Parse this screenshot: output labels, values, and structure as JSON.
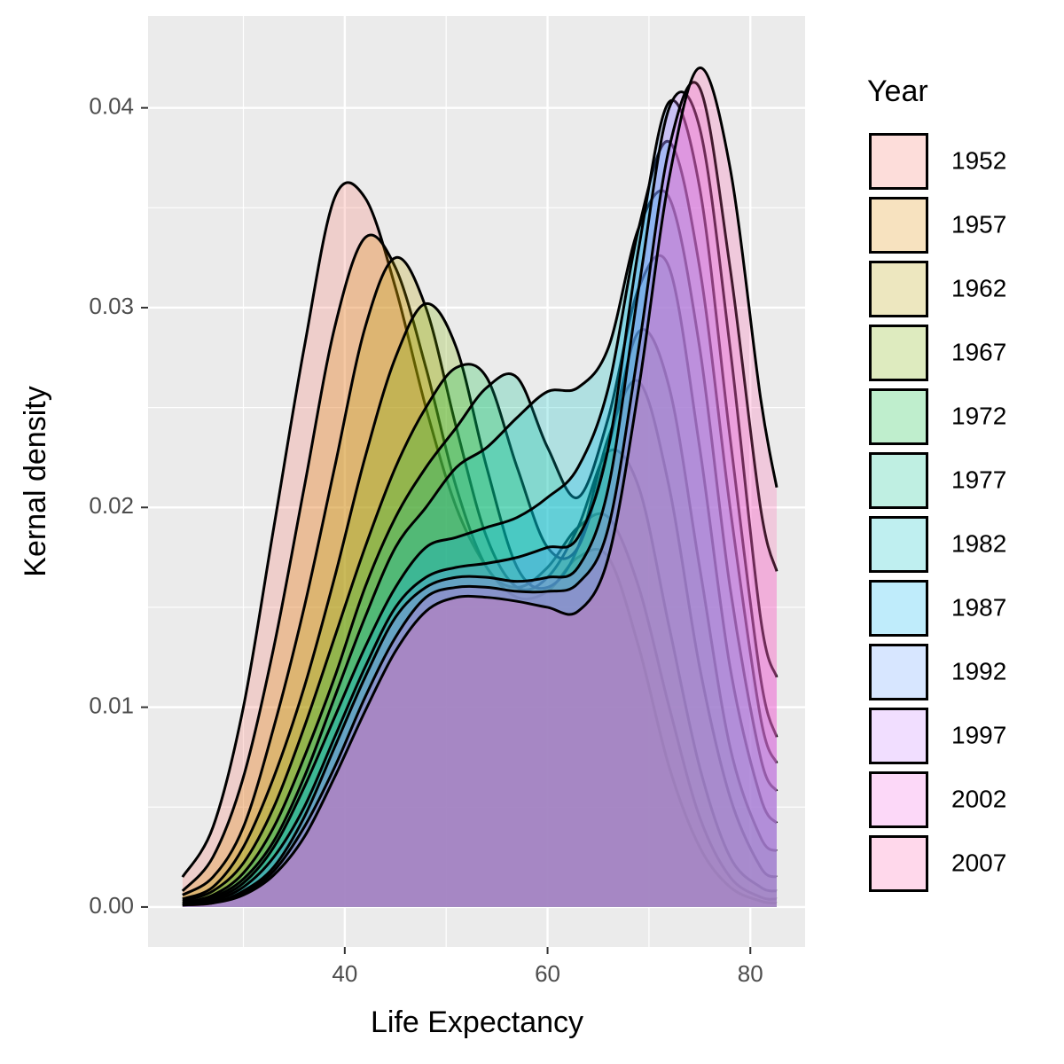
{
  "chart_data": {
    "type": "density",
    "x_label": "Life Expectancy",
    "y_label": "Kernal density",
    "legend_title": "Year",
    "legend": "right",
    "grid": true,
    "minor_grid": true,
    "fill_opacity": 0.25,
    "line_color": "#000000",
    "xlim": [
      20.6,
      85.4
    ],
    "ylim": [
      -0.002,
      0.0446
    ],
    "xticks": [
      40,
      60,
      80
    ],
    "yticks": [
      {
        "value": 0,
        "label": "0.00"
      },
      0.01,
      0.02,
      0.03,
      0.04
    ],
    "x": [
      24,
      27,
      30,
      33,
      36,
      39,
      42,
      45,
      48,
      51,
      54,
      57,
      60,
      63,
      66,
      69,
      72,
      75,
      78,
      81,
      82.6
    ],
    "series": [
      {
        "name": "1952",
        "color": "#F8766D",
        "values": [
          0.0015,
          0.004,
          0.01,
          0.019,
          0.028,
          0.0355,
          0.0355,
          0.031,
          0.025,
          0.02,
          0.017,
          0.0155,
          0.0158,
          0.0175,
          0.0175,
          0.013,
          0.007,
          0.003,
          0.001,
          0.0003,
          0.0002
        ]
      },
      {
        "name": "1957",
        "color": "#DE8C00",
        "values": [
          0.0008,
          0.0025,
          0.0065,
          0.013,
          0.021,
          0.029,
          0.0335,
          0.032,
          0.027,
          0.021,
          0.017,
          0.016,
          0.017,
          0.019,
          0.0195,
          0.016,
          0.01,
          0.0045,
          0.0015,
          0.0005,
          0.0004
        ]
      },
      {
        "name": "1962",
        "color": "#B79F00",
        "values": [
          0.0006,
          0.0015,
          0.004,
          0.009,
          0.015,
          0.022,
          0.029,
          0.0325,
          0.03,
          0.024,
          0.0185,
          0.016,
          0.0165,
          0.019,
          0.0228,
          0.021,
          0.014,
          0.007,
          0.0025,
          0.001,
          0.0008
        ]
      },
      {
        "name": "1967",
        "color": "#7CAE00",
        "values": [
          0.0004,
          0.001,
          0.003,
          0.0065,
          0.011,
          0.0165,
          0.0225,
          0.0275,
          0.0302,
          0.028,
          0.022,
          0.017,
          0.016,
          0.018,
          0.0235,
          0.0263,
          0.021,
          0.012,
          0.0055,
          0.002,
          0.0015
        ]
      },
      {
        "name": "1972",
        "color": "#00BA38",
        "values": [
          0.0003,
          0.0008,
          0.0022,
          0.005,
          0.009,
          0.0135,
          0.018,
          0.022,
          0.025,
          0.027,
          0.0265,
          0.022,
          0.018,
          0.018,
          0.023,
          0.0288,
          0.026,
          0.017,
          0.008,
          0.0035,
          0.0028
        ]
      },
      {
        "name": "1977",
        "color": "#00C08B",
        "values": [
          0.0002,
          0.0006,
          0.0017,
          0.004,
          0.0075,
          0.0115,
          0.016,
          0.0195,
          0.022,
          0.024,
          0.026,
          0.0265,
          0.023,
          0.0205,
          0.0245,
          0.031,
          0.032,
          0.023,
          0.012,
          0.0055,
          0.0042
        ]
      },
      {
        "name": "1982",
        "color": "#00BFC4",
        "values": [
          0.0002,
          0.0005,
          0.0014,
          0.0033,
          0.0065,
          0.0105,
          0.0145,
          0.018,
          0.02,
          0.022,
          0.023,
          0.0245,
          0.0258,
          0.026,
          0.028,
          0.034,
          0.0355,
          0.028,
          0.016,
          0.0075,
          0.0058
        ]
      },
      {
        "name": "1987",
        "color": "#00B4F0",
        "values": [
          0.0001,
          0.0004,
          0.0012,
          0.003,
          0.006,
          0.0095,
          0.013,
          0.016,
          0.018,
          0.0185,
          0.019,
          0.0195,
          0.0205,
          0.022,
          0.026,
          0.034,
          0.0383,
          0.032,
          0.02,
          0.0095,
          0.0072
        ]
      },
      {
        "name": "1992",
        "color": "#619CFF",
        "values": [
          0.0001,
          0.0003,
          0.001,
          0.0025,
          0.005,
          0.0085,
          0.012,
          0.015,
          0.0165,
          0.017,
          0.0172,
          0.0175,
          0.018,
          0.0185,
          0.023,
          0.033,
          0.0403,
          0.036,
          0.0235,
          0.0115,
          0.0085
        ]
      },
      {
        "name": "1997",
        "color": "#C77CFF",
        "values": [
          0.0001,
          0.0002,
          0.0008,
          0.002,
          0.0045,
          0.008,
          0.0115,
          0.0145,
          0.016,
          0.0165,
          0.0165,
          0.0163,
          0.0165,
          0.017,
          0.021,
          0.031,
          0.04,
          0.039,
          0.028,
          0.0145,
          0.0115
        ]
      },
      {
        "name": "2002",
        "color": "#F564E3",
        "values": [
          0.0001,
          0.0002,
          0.0007,
          0.0018,
          0.004,
          0.007,
          0.0105,
          0.0135,
          0.0155,
          0.016,
          0.016,
          0.0158,
          0.0158,
          0.0162,
          0.019,
          0.028,
          0.038,
          0.041,
          0.032,
          0.02,
          0.0168
        ]
      },
      {
        "name": "2007",
        "color": "#FF64B0",
        "values": [
          0.0001,
          0.0002,
          0.0006,
          0.0016,
          0.0035,
          0.0065,
          0.0098,
          0.0128,
          0.0148,
          0.0155,
          0.0155,
          0.0153,
          0.015,
          0.0148,
          0.0175,
          0.026,
          0.0365,
          0.042,
          0.037,
          0.0255,
          0.021
        ]
      }
    ]
  }
}
